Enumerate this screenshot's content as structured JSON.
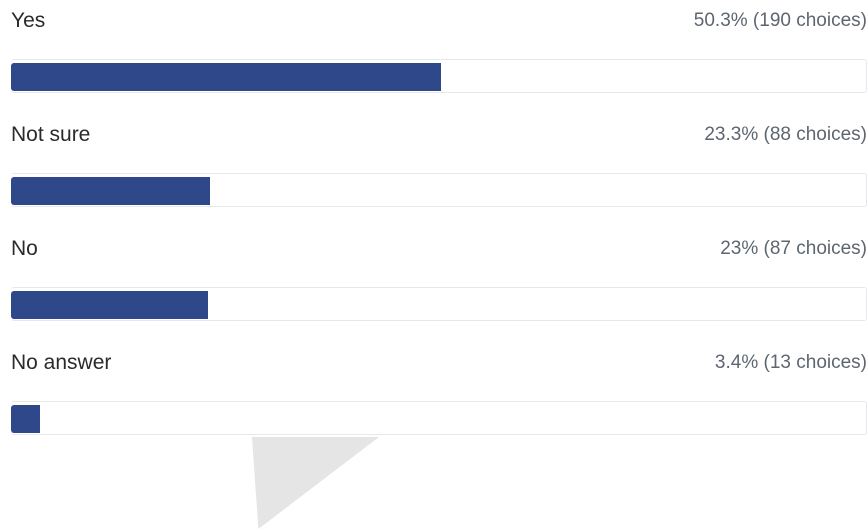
{
  "poll": {
    "options": [
      {
        "label": "Yes",
        "count_text": "50.3% (190 choices)",
        "percent": 50.3,
        "choices": 190
      },
      {
        "label": "Not sure",
        "count_text": "23.3% (88 choices)",
        "percent": 23.3,
        "choices": 88
      },
      {
        "label": "No",
        "count_text": "23% (87 choices)",
        "percent": 23,
        "choices": 87
      },
      {
        "label": "No answer",
        "count_text": "3.4% (13 choices)",
        "percent": 3.4,
        "choices": 13
      }
    ]
  },
  "colors": {
    "bar": "#2f4889",
    "track_border": "#e6e8ea",
    "label": "#2b2b2b",
    "count": "#5d6670"
  },
  "chart_data": {
    "type": "bar",
    "orientation": "horizontal",
    "categories": [
      "Yes",
      "Not sure",
      "No",
      "No answer"
    ],
    "values": [
      50.3,
      23.3,
      23,
      3.4
    ],
    "choices": [
      190,
      88,
      87,
      13
    ],
    "unit": "%",
    "xlim": [
      0,
      100
    ],
    "grid": false,
    "legend": "none"
  }
}
